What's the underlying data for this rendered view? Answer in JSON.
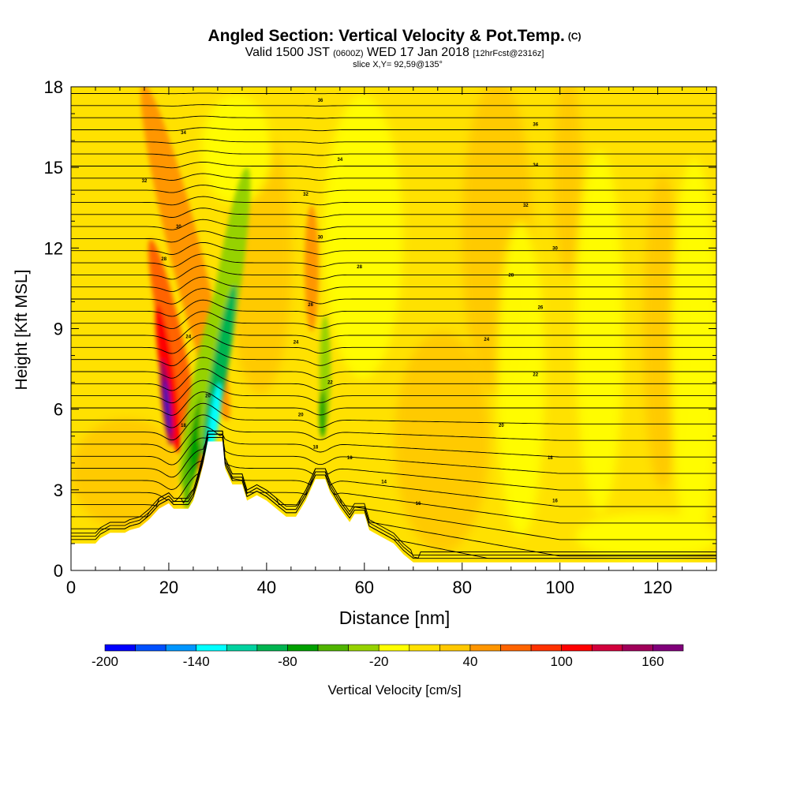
{
  "header": {
    "title": "Angled Section: Vertical Velocity & Pot.Temp.",
    "copyright": "(C)",
    "valid_prefix": "Valid 1500 JST",
    "valid_utc": "(0600Z)",
    "valid_date": "WED 17 Jan 2018",
    "forecast": "[12hrFcst@2316z]",
    "slice": "slice X,Y= 92,59@135°"
  },
  "chart_data": {
    "type": "heatmap",
    "title": "Angled Section: Vertical Velocity & Pot.Temp.",
    "xlabel": "Distance [nm]",
    "ylabel": "Height [Kft MSL]",
    "xlim": [
      0,
      132
    ],
    "ylim": [
      0,
      18
    ],
    "x_ticks": [
      "0",
      "20",
      "40",
      "60",
      "80",
      "100",
      "120"
    ],
    "x_tick_values": [
      0,
      20,
      40,
      60,
      80,
      100,
      120
    ],
    "y_ticks": [
      "0",
      "3",
      "6",
      "9",
      "12",
      "15",
      "18"
    ],
    "y_tick_values": [
      0,
      3,
      6,
      9,
      12,
      15,
      18
    ],
    "colorbar": {
      "label": "Vertical Velocity [cm/s]",
      "min": -200,
      "max": 180,
      "step": 20,
      "tick_labels": [
        "-200",
        "-140",
        "-80",
        "-20",
        "40",
        "100",
        "160"
      ],
      "tick_values": [
        -200,
        -140,
        -80,
        -20,
        40,
        100,
        160
      ],
      "colors": [
        "#0000ff",
        "#0050ff",
        "#0096ff",
        "#00ffff",
        "#00d2a0",
        "#00b450",
        "#00a000",
        "#50b400",
        "#96d200",
        "#ffff00",
        "#ffe100",
        "#ffc800",
        "#ff9600",
        "#ff6400",
        "#ff3200",
        "#ff0000",
        "#d2003c",
        "#a0005a",
        "#80007a"
      ]
    },
    "terrain": [
      [
        0,
        1.0
      ],
      [
        5,
        1.0
      ],
      [
        6,
        1.2
      ],
      [
        8,
        1.4
      ],
      [
        11,
        1.4
      ],
      [
        12,
        1.5
      ],
      [
        14,
        1.6
      ],
      [
        16,
        1.9
      ],
      [
        18,
        2.3
      ],
      [
        20,
        2.5
      ],
      [
        21,
        2.3
      ],
      [
        24,
        2.3
      ],
      [
        25,
        2.6
      ],
      [
        26,
        3.2
      ],
      [
        27,
        3.9
      ],
      [
        28,
        4.8
      ],
      [
        31,
        4.8
      ],
      [
        31.5,
        3.8
      ],
      [
        33,
        3.2
      ],
      [
        35,
        3.2
      ],
      [
        36,
        2.6
      ],
      [
        38,
        2.8
      ],
      [
        40,
        2.6
      ],
      [
        42,
        2.3
      ],
      [
        44,
        2.0
      ],
      [
        46,
        2.0
      ],
      [
        48,
        2.6
      ],
      [
        50,
        3.4
      ],
      [
        52,
        3.4
      ],
      [
        53,
        2.9
      ],
      [
        55,
        2.3
      ],
      [
        57,
        1.8
      ],
      [
        58,
        2.1
      ],
      [
        60,
        2.1
      ],
      [
        61,
        1.5
      ],
      [
        63,
        1.3
      ],
      [
        66,
        1.0
      ],
      [
        68,
        0.6
      ],
      [
        70,
        0.3
      ],
      [
        80,
        0.3
      ],
      [
        132,
        0.3
      ]
    ],
    "isentrope_labels": [
      {
        "x": 51,
        "y": 17.5,
        "text": "36"
      },
      {
        "x": 95,
        "y": 16.6,
        "text": "36"
      },
      {
        "x": 23,
        "y": 16.3,
        "text": "34"
      },
      {
        "x": 55,
        "y": 15.3,
        "text": "34"
      },
      {
        "x": 95,
        "y": 15.1,
        "text": "34"
      },
      {
        "x": 15,
        "y": 14.5,
        "text": "32"
      },
      {
        "x": 48,
        "y": 14.0,
        "text": "32"
      },
      {
        "x": 93,
        "y": 13.6,
        "text": "32"
      },
      {
        "x": 22,
        "y": 12.8,
        "text": "30"
      },
      {
        "x": 51,
        "y": 12.4,
        "text": "30"
      },
      {
        "x": 99,
        "y": 12.0,
        "text": "30"
      },
      {
        "x": 19,
        "y": 11.6,
        "text": "28"
      },
      {
        "x": 59,
        "y": 11.3,
        "text": "28"
      },
      {
        "x": 90,
        "y": 11.0,
        "text": "28"
      },
      {
        "x": 49,
        "y": 9.9,
        "text": "26"
      },
      {
        "x": 96,
        "y": 9.8,
        "text": "26"
      },
      {
        "x": 24,
        "y": 8.7,
        "text": "24"
      },
      {
        "x": 46,
        "y": 8.5,
        "text": "24"
      },
      {
        "x": 85,
        "y": 8.6,
        "text": "24"
      },
      {
        "x": 53,
        "y": 7.0,
        "text": "22"
      },
      {
        "x": 95,
        "y": 7.3,
        "text": "22"
      },
      {
        "x": 28,
        "y": 6.5,
        "text": "20"
      },
      {
        "x": 47,
        "y": 5.8,
        "text": "20"
      },
      {
        "x": 88,
        "y": 5.4,
        "text": "20"
      },
      {
        "x": 23,
        "y": 5.4,
        "text": "18"
      },
      {
        "x": 50,
        "y": 4.6,
        "text": "18"
      },
      {
        "x": 57,
        "y": 4.2,
        "text": "18"
      },
      {
        "x": 98,
        "y": 4.2,
        "text": "18"
      },
      {
        "x": 64,
        "y": 3.3,
        "text": "14"
      },
      {
        "x": 71,
        "y": 2.5,
        "text": "16"
      },
      {
        "x": 99,
        "y": 2.6,
        "text": "16"
      }
    ]
  }
}
